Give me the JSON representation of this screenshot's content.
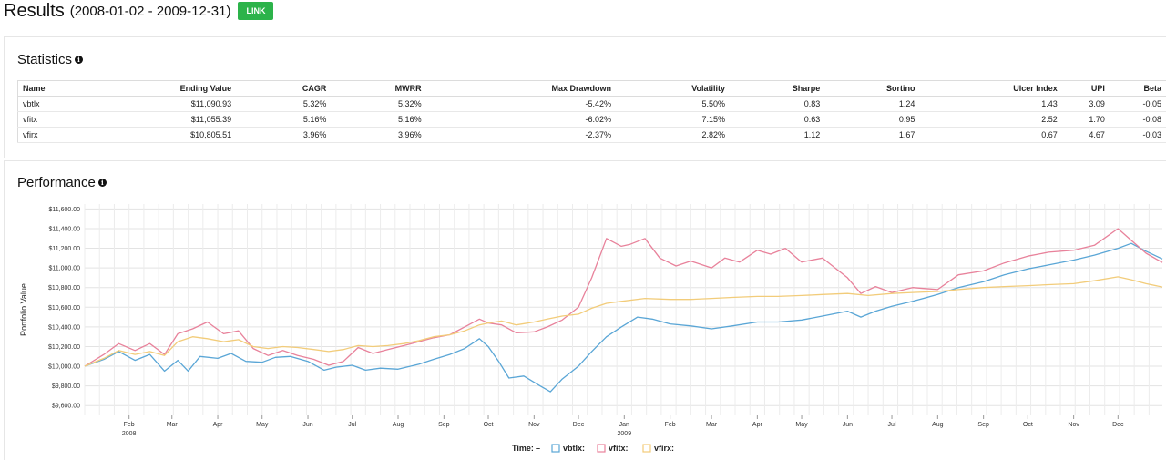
{
  "header": {
    "title": "Results",
    "date_range": "(2008-01-02 - 2009-12-31)",
    "link_label": "LINK",
    "link_color": "#2cb34a"
  },
  "statistics": {
    "title": "Statistics",
    "info_icon": "info-icon",
    "columns": [
      "Name",
      "Ending Value",
      "CAGR",
      "MWRR",
      "Max Drawdown",
      "Volatility",
      "Sharpe",
      "Sortino",
      "Ulcer Index",
      "UPI",
      "Beta"
    ],
    "rows": [
      [
        "vbtlx",
        "$11,090.93",
        "5.32%",
        "5.32%",
        "-5.42%",
        "5.50%",
        "0.83",
        "1.24",
        "1.43",
        "3.09",
        "-0.05"
      ],
      [
        "vfitx",
        "$11,055.39",
        "5.16%",
        "5.16%",
        "-6.02%",
        "7.15%",
        "0.63",
        "0.95",
        "2.52",
        "1.70",
        "-0.08"
      ],
      [
        "vfirx",
        "$10,805.51",
        "3.96%",
        "3.96%",
        "-2.37%",
        "2.82%",
        "1.12",
        "1.67",
        "0.67",
        "4.67",
        "-0.03"
      ]
    ]
  },
  "performance": {
    "title": "Performance",
    "info_icon": "info-icon"
  },
  "chart_data": {
    "type": "line",
    "ylabel": "Portfolio Value",
    "xlabel": "",
    "ylim": [
      9500,
      11650
    ],
    "y_ticks": [
      9600,
      9800,
      10000,
      10200,
      10400,
      10600,
      10800,
      11000,
      11200,
      11400,
      11600
    ],
    "y_tick_labels": [
      "$9,600.00",
      "$9,800.00",
      "$10,000.00",
      "$10,200.00",
      "$10,400.00",
      "$10,600.00",
      "$10,800.00",
      "$11,000.00",
      "$11,200.00",
      "$11,400.00",
      "$11,600.00"
    ],
    "x_start": "2008-01-02",
    "x_end": "2009-12-31",
    "x_ticks": [
      {
        "date": "2008-02-01",
        "label": "Feb",
        "year": "2008"
      },
      {
        "date": "2008-03-01",
        "label": "Mar"
      },
      {
        "date": "2008-04-01",
        "label": "Apr"
      },
      {
        "date": "2008-05-01",
        "label": "May"
      },
      {
        "date": "2008-06-01",
        "label": "Jun"
      },
      {
        "date": "2008-07-01",
        "label": "Jul"
      },
      {
        "date": "2008-08-01",
        "label": "Aug"
      },
      {
        "date": "2008-09-01",
        "label": "Sep"
      },
      {
        "date": "2008-10-01",
        "label": "Oct"
      },
      {
        "date": "2008-11-01",
        "label": "Nov"
      },
      {
        "date": "2008-12-01",
        "label": "Dec"
      },
      {
        "date": "2009-01-01",
        "label": "Jan",
        "year": "2009"
      },
      {
        "date": "2009-02-01",
        "label": "Feb"
      },
      {
        "date": "2009-03-01",
        "label": "Mar"
      },
      {
        "date": "2009-04-01",
        "label": "Apr"
      },
      {
        "date": "2009-05-01",
        "label": "May"
      },
      {
        "date": "2009-06-01",
        "label": "Jun"
      },
      {
        "date": "2009-07-01",
        "label": "Jul"
      },
      {
        "date": "2009-08-01",
        "label": "Aug"
      },
      {
        "date": "2009-09-01",
        "label": "Sep"
      },
      {
        "date": "2009-10-01",
        "label": "Oct"
      },
      {
        "date": "2009-11-01",
        "label": "Nov"
      },
      {
        "date": "2009-12-01",
        "label": "Dec"
      }
    ],
    "grid": true,
    "legend_position": "bottom-center",
    "legend_time_label": "Time:",
    "legend_time_value": "–",
    "series": [
      {
        "name": "vbtlx:",
        "color": "#5aa6d6",
        "points": [
          [
            "2008-01-02",
            10000
          ],
          [
            "2008-01-15",
            10070
          ],
          [
            "2008-01-25",
            10150
          ],
          [
            "2008-02-05",
            10060
          ],
          [
            "2008-02-15",
            10120
          ],
          [
            "2008-02-25",
            9950
          ],
          [
            "2008-03-05",
            10060
          ],
          [
            "2008-03-12",
            9950
          ],
          [
            "2008-03-20",
            10100
          ],
          [
            "2008-04-01",
            10080
          ],
          [
            "2008-04-10",
            10130
          ],
          [
            "2008-04-20",
            10050
          ],
          [
            "2008-05-01",
            10040
          ],
          [
            "2008-05-10",
            10090
          ],
          [
            "2008-05-20",
            10100
          ],
          [
            "2008-06-01",
            10050
          ],
          [
            "2008-06-12",
            9960
          ],
          [
            "2008-06-20",
            9990
          ],
          [
            "2008-07-01",
            10010
          ],
          [
            "2008-07-10",
            9960
          ],
          [
            "2008-07-20",
            9980
          ],
          [
            "2008-08-01",
            9970
          ],
          [
            "2008-08-15",
            10020
          ],
          [
            "2008-08-25",
            10070
          ],
          [
            "2008-09-05",
            10120
          ],
          [
            "2008-09-15",
            10180
          ],
          [
            "2008-09-25",
            10280
          ],
          [
            "2008-10-01",
            10200
          ],
          [
            "2008-10-08",
            10050
          ],
          [
            "2008-10-15",
            9880
          ],
          [
            "2008-10-25",
            9900
          ],
          [
            "2008-11-05",
            9800
          ],
          [
            "2008-11-12",
            9740
          ],
          [
            "2008-11-20",
            9870
          ],
          [
            "2008-12-01",
            10000
          ],
          [
            "2008-12-10",
            10150
          ],
          [
            "2008-12-20",
            10300
          ],
          [
            "2008-12-30",
            10400
          ],
          [
            "2009-01-10",
            10500
          ],
          [
            "2009-01-20",
            10480
          ],
          [
            "2009-02-01",
            10430
          ],
          [
            "2009-02-15",
            10410
          ],
          [
            "2009-03-01",
            10380
          ],
          [
            "2009-03-15",
            10410
          ],
          [
            "2009-04-01",
            10450
          ],
          [
            "2009-04-15",
            10450
          ],
          [
            "2009-05-01",
            10470
          ],
          [
            "2009-05-15",
            10510
          ],
          [
            "2009-06-01",
            10560
          ],
          [
            "2009-06-10",
            10500
          ],
          [
            "2009-06-20",
            10560
          ],
          [
            "2009-07-01",
            10610
          ],
          [
            "2009-07-15",
            10660
          ],
          [
            "2009-08-01",
            10730
          ],
          [
            "2009-08-15",
            10800
          ],
          [
            "2009-09-01",
            10860
          ],
          [
            "2009-09-15",
            10930
          ],
          [
            "2009-10-01",
            10990
          ],
          [
            "2009-10-15",
            11030
          ],
          [
            "2009-11-01",
            11080
          ],
          [
            "2009-11-15",
            11130
          ],
          [
            "2009-12-01",
            11200
          ],
          [
            "2009-12-10",
            11250
          ],
          [
            "2009-12-20",
            11170
          ],
          [
            "2009-12-31",
            11091
          ]
        ]
      },
      {
        "name": "vfitx:",
        "color": "#e8829b",
        "points": [
          [
            "2008-01-02",
            10000
          ],
          [
            "2008-01-15",
            10120
          ],
          [
            "2008-01-25",
            10230
          ],
          [
            "2008-02-05",
            10160
          ],
          [
            "2008-02-15",
            10230
          ],
          [
            "2008-02-25",
            10120
          ],
          [
            "2008-03-05",
            10330
          ],
          [
            "2008-03-15",
            10380
          ],
          [
            "2008-03-25",
            10450
          ],
          [
            "2008-04-05",
            10330
          ],
          [
            "2008-04-15",
            10360
          ],
          [
            "2008-04-25",
            10180
          ],
          [
            "2008-05-05",
            10110
          ],
          [
            "2008-05-15",
            10160
          ],
          [
            "2008-05-25",
            10110
          ],
          [
            "2008-06-05",
            10070
          ],
          [
            "2008-06-15",
            10010
          ],
          [
            "2008-06-25",
            10050
          ],
          [
            "2008-07-05",
            10190
          ],
          [
            "2008-07-15",
            10130
          ],
          [
            "2008-07-25",
            10170
          ],
          [
            "2008-08-05",
            10210
          ],
          [
            "2008-08-15",
            10250
          ],
          [
            "2008-08-25",
            10290
          ],
          [
            "2008-09-05",
            10320
          ],
          [
            "2008-09-15",
            10400
          ],
          [
            "2008-09-25",
            10480
          ],
          [
            "2008-10-01",
            10440
          ],
          [
            "2008-10-10",
            10420
          ],
          [
            "2008-10-20",
            10340
          ],
          [
            "2008-11-01",
            10350
          ],
          [
            "2008-11-10",
            10400
          ],
          [
            "2008-11-20",
            10470
          ],
          [
            "2008-12-01",
            10600
          ],
          [
            "2008-12-10",
            10900
          ],
          [
            "2008-12-20",
            11300
          ],
          [
            "2008-12-30",
            11220
          ],
          [
            "2009-01-05",
            11240
          ],
          [
            "2009-01-15",
            11300
          ],
          [
            "2009-01-25",
            11100
          ],
          [
            "2009-02-05",
            11020
          ],
          [
            "2009-02-15",
            11070
          ],
          [
            "2009-03-01",
            11000
          ],
          [
            "2009-03-10",
            11100
          ],
          [
            "2009-03-20",
            11060
          ],
          [
            "2009-04-01",
            11180
          ],
          [
            "2009-04-10",
            11140
          ],
          [
            "2009-04-20",
            11200
          ],
          [
            "2009-05-01",
            11060
          ],
          [
            "2009-05-15",
            11100
          ],
          [
            "2009-06-01",
            10900
          ],
          [
            "2009-06-10",
            10740
          ],
          [
            "2009-06-20",
            10810
          ],
          [
            "2009-07-01",
            10750
          ],
          [
            "2009-07-15",
            10800
          ],
          [
            "2009-08-01",
            10780
          ],
          [
            "2009-08-15",
            10930
          ],
          [
            "2009-09-01",
            10970
          ],
          [
            "2009-09-15",
            11050
          ],
          [
            "2009-10-01",
            11120
          ],
          [
            "2009-10-15",
            11160
          ],
          [
            "2009-11-01",
            11180
          ],
          [
            "2009-11-15",
            11230
          ],
          [
            "2009-12-01",
            11400
          ],
          [
            "2009-12-10",
            11280
          ],
          [
            "2009-12-20",
            11150
          ],
          [
            "2009-12-31",
            11055
          ]
        ]
      },
      {
        "name": "vfirx:",
        "color": "#f2cc7a",
        "points": [
          [
            "2008-01-02",
            10000
          ],
          [
            "2008-01-15",
            10080
          ],
          [
            "2008-01-25",
            10160
          ],
          [
            "2008-02-05",
            10120
          ],
          [
            "2008-02-15",
            10150
          ],
          [
            "2008-02-25",
            10110
          ],
          [
            "2008-03-05",
            10250
          ],
          [
            "2008-03-15",
            10300
          ],
          [
            "2008-03-25",
            10280
          ],
          [
            "2008-04-05",
            10250
          ],
          [
            "2008-04-15",
            10270
          ],
          [
            "2008-04-25",
            10200
          ],
          [
            "2008-05-05",
            10180
          ],
          [
            "2008-05-15",
            10200
          ],
          [
            "2008-05-25",
            10190
          ],
          [
            "2008-06-05",
            10170
          ],
          [
            "2008-06-15",
            10150
          ],
          [
            "2008-06-25",
            10170
          ],
          [
            "2008-07-05",
            10210
          ],
          [
            "2008-07-15",
            10200
          ],
          [
            "2008-07-25",
            10210
          ],
          [
            "2008-08-05",
            10230
          ],
          [
            "2008-08-15",
            10260
          ],
          [
            "2008-08-25",
            10300
          ],
          [
            "2008-09-05",
            10320
          ],
          [
            "2008-09-15",
            10360
          ],
          [
            "2008-09-25",
            10420
          ],
          [
            "2008-10-01",
            10440
          ],
          [
            "2008-10-10",
            10460
          ],
          [
            "2008-10-20",
            10420
          ],
          [
            "2008-11-01",
            10450
          ],
          [
            "2008-11-10",
            10480
          ],
          [
            "2008-11-20",
            10510
          ],
          [
            "2008-12-01",
            10530
          ],
          [
            "2008-12-10",
            10590
          ],
          [
            "2008-12-20",
            10640
          ],
          [
            "2008-12-30",
            10660
          ],
          [
            "2009-01-15",
            10690
          ],
          [
            "2009-02-01",
            10680
          ],
          [
            "2009-02-15",
            10680
          ],
          [
            "2009-03-01",
            10690
          ],
          [
            "2009-03-15",
            10700
          ],
          [
            "2009-04-01",
            10710
          ],
          [
            "2009-04-15",
            10710
          ],
          [
            "2009-05-01",
            10720
          ],
          [
            "2009-05-15",
            10730
          ],
          [
            "2009-06-01",
            10740
          ],
          [
            "2009-06-15",
            10720
          ],
          [
            "2009-07-01",
            10740
          ],
          [
            "2009-07-15",
            10750
          ],
          [
            "2009-08-01",
            10760
          ],
          [
            "2009-08-15",
            10780
          ],
          [
            "2009-09-01",
            10800
          ],
          [
            "2009-09-15",
            10810
          ],
          [
            "2009-10-01",
            10820
          ],
          [
            "2009-10-15",
            10830
          ],
          [
            "2009-11-01",
            10840
          ],
          [
            "2009-11-15",
            10870
          ],
          [
            "2009-12-01",
            10910
          ],
          [
            "2009-12-10",
            10880
          ],
          [
            "2009-12-20",
            10840
          ],
          [
            "2009-12-31",
            10806
          ]
        ]
      }
    ]
  }
}
